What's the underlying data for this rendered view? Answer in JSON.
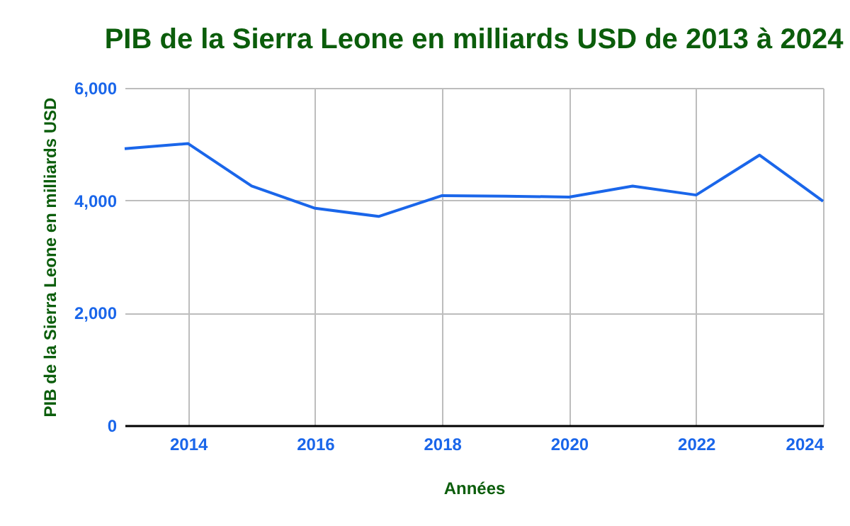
{
  "chart_data": {
    "type": "line",
    "title": "PIB de la Sierra Leone en milliards USD de 2013 à 2024",
    "xlabel": "Années",
    "ylabel": "PIB de la Sierra Leone en milliards USD",
    "x": [
      2013,
      2014,
      2015,
      2016,
      2017,
      2018,
      2019,
      2020,
      2021,
      2022,
      2023,
      2024
    ],
    "series": [
      {
        "color": "#1a66ea",
        "values": [
          4920,
          5010,
          4255,
          3860,
          3715,
          4085,
          4075,
          4060,
          4255,
          4095,
          4805,
          3985
        ]
      }
    ],
    "xlim": [
      2013,
      2024
    ],
    "xticks": [
      2014,
      2016,
      2018,
      2020,
      2022,
      2024
    ],
    "ylim": [
      0,
      6000
    ],
    "yticks": [
      {
        "value": 0,
        "label": "0"
      },
      {
        "value": 2000,
        "label": "2,000"
      },
      {
        "value": 4000,
        "label": "4,000"
      },
      {
        "value": 6000,
        "label": "6,000"
      }
    ],
    "grid": true,
    "legend": false,
    "marker": "none",
    "line_style": "solid"
  }
}
